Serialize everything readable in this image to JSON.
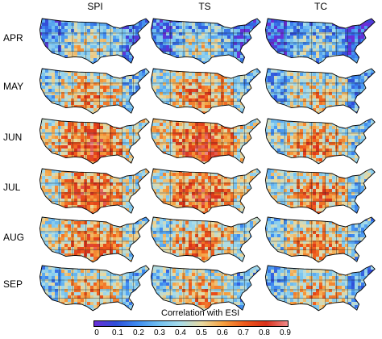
{
  "columns": [
    "SPI",
    "TS",
    "TC"
  ],
  "rows": [
    "APR",
    "MAY",
    "JUN",
    "JUL",
    "AUG",
    "SEP"
  ],
  "colorbar": {
    "title": "Correlation with ESI",
    "ticks": [
      "0",
      "0.1",
      "0.2",
      "0.3",
      "0.4",
      "0.5",
      "0.6",
      "0.7",
      "0.8",
      "0.9"
    ],
    "colors": [
      "#6a2fd8",
      "#2f4fd8",
      "#3f8cf0",
      "#72c0f0",
      "#a8dcea",
      "#e8d9a0",
      "#f6a040",
      "#ee5a1c",
      "#d8301a",
      "#f08a8a"
    ]
  },
  "panel_mean_levels": [
    [
      0.32,
      0.28,
      0.22
    ],
    [
      0.48,
      0.52,
      0.4
    ],
    [
      0.62,
      0.64,
      0.5
    ],
    [
      0.6,
      0.6,
      0.52
    ],
    [
      0.55,
      0.52,
      0.48
    ],
    [
      0.45,
      0.45,
      0.42
    ]
  ]
}
